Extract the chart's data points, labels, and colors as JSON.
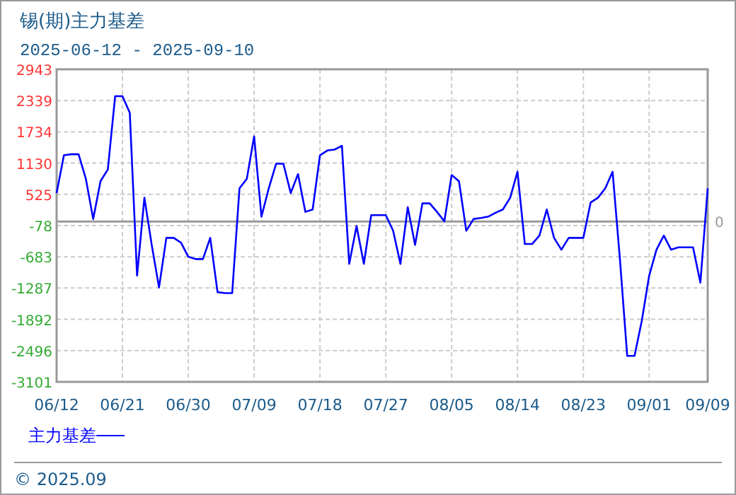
{
  "chart_data": {
    "type": "line",
    "title": "锡(期)主力基差",
    "subtitle": "2025-06-12 - 2025-09-10",
    "x": [
      "2025-06-12",
      "2025-06-13",
      "2025-06-14",
      "2025-06-15",
      "2025-06-16",
      "2025-06-17",
      "2025-06-18",
      "2025-06-19",
      "2025-06-20",
      "2025-06-21",
      "2025-06-22",
      "2025-06-23",
      "2025-06-24",
      "2025-06-25",
      "2025-06-26",
      "2025-06-27",
      "2025-06-28",
      "2025-06-29",
      "2025-06-30",
      "2025-07-01",
      "2025-07-02",
      "2025-07-03",
      "2025-07-04",
      "2025-07-05",
      "2025-07-06",
      "2025-07-07",
      "2025-07-08",
      "2025-07-09",
      "2025-07-10",
      "2025-07-11",
      "2025-07-12",
      "2025-07-13",
      "2025-07-14",
      "2025-07-15",
      "2025-07-16",
      "2025-07-17",
      "2025-07-18",
      "2025-07-19",
      "2025-07-20",
      "2025-07-21",
      "2025-07-22",
      "2025-07-23",
      "2025-07-24",
      "2025-07-25",
      "2025-07-26",
      "2025-07-27",
      "2025-07-28",
      "2025-07-29",
      "2025-07-30",
      "2025-07-31",
      "2025-08-01",
      "2025-08-02",
      "2025-08-03",
      "2025-08-04",
      "2025-08-05",
      "2025-08-06",
      "2025-08-07",
      "2025-08-08",
      "2025-08-09",
      "2025-08-10",
      "2025-08-11",
      "2025-08-12",
      "2025-08-13",
      "2025-08-14",
      "2025-08-15",
      "2025-08-16",
      "2025-08-17",
      "2025-08-18",
      "2025-08-19",
      "2025-08-20",
      "2025-08-21",
      "2025-08-22",
      "2025-08-23",
      "2025-08-24",
      "2025-08-25",
      "2025-08-26",
      "2025-08-27",
      "2025-08-28",
      "2025-08-29",
      "2025-08-30",
      "2025-08-31",
      "2025-09-01",
      "2025-09-02",
      "2025-09-03",
      "2025-09-04",
      "2025-09-05",
      "2025-09-06",
      "2025-09-07",
      "2025-09-08",
      "2025-09-09"
    ],
    "series": [
      {
        "name": "主力基差",
        "color": "#0000ff",
        "values": [
          551,
          1281,
          1300,
          1300,
          825,
          49,
          779,
          1007,
          2423,
          2423,
          2103,
          -1047,
          460,
          -453,
          -1275,
          -317,
          -317,
          -408,
          -682,
          -727,
          -727,
          -317,
          -1366,
          -1384,
          -1384,
          642,
          825,
          1647,
          94,
          642,
          1117,
          1117,
          551,
          916,
          186,
          232,
          1281,
          1373,
          1391,
          1464,
          -819,
          -88,
          -819,
          122,
          122,
          122,
          -179,
          -819,
          277,
          -453,
          350,
          350,
          186,
          3,
          898,
          779,
          -179,
          49,
          67,
          94,
          168,
          232,
          460,
          962,
          -435,
          -435,
          -271,
          232,
          -317,
          -545,
          -317,
          -317,
          -317,
          368,
          460,
          642,
          962,
          -727,
          -2599,
          -2599,
          -1914,
          -1047,
          -545,
          -271,
          -545,
          -499,
          -499,
          -499,
          -1184,
          642
        ]
      }
    ],
    "xlim": [
      "2025-06-12",
      "2025-09-09"
    ],
    "xticks": [
      {
        "value": "2025-06-12",
        "label": "06/12"
      },
      {
        "value": "2025-06-21",
        "label": "06/21"
      },
      {
        "value": "2025-06-30",
        "label": "06/30"
      },
      {
        "value": "2025-07-09",
        "label": "07/09"
      },
      {
        "value": "2025-07-18",
        "label": "07/18"
      },
      {
        "value": "2025-07-27",
        "label": "07/27"
      },
      {
        "value": "2025-08-05",
        "label": "08/05"
      },
      {
        "value": "2025-08-14",
        "label": "08/14"
      },
      {
        "value": "2025-08-23",
        "label": "08/23"
      },
      {
        "value": "2025-09-01",
        "label": "09/01"
      },
      {
        "value": "2025-09-09",
        "label": "09/09"
      }
    ],
    "ylim": [
      -3101,
      2943
    ],
    "yticks": [
      2943,
      2339,
      1734,
      1130,
      525,
      -78,
      -683,
      -1287,
      -1892,
      -2496,
      -3101
    ],
    "ref_lines": [
      {
        "axis": "y",
        "value": 0,
        "label": "0",
        "color": "#999999"
      }
    ],
    "grid": true,
    "legend": "bottom left",
    "line_style": "solid",
    "annotations": [
      "© 2025.09"
    ]
  }
}
